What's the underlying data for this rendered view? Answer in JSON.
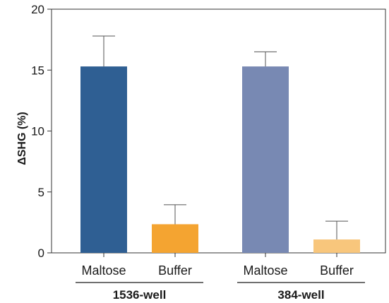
{
  "chart_data": {
    "type": "bar",
    "ylabel": "ΔSHG (%)",
    "ylim": [
      0,
      20
    ],
    "yticks": [
      "0",
      "5",
      "10",
      "15",
      "20"
    ],
    "bars": [
      {
        "category": "Maltose",
        "group": "1536-well",
        "value": 15.3,
        "error": 2.5,
        "color": "#2f5f93"
      },
      {
        "category": "Buffer",
        "group": "1536-well",
        "value": 2.35,
        "error": 1.6,
        "color": "#f4a431"
      },
      {
        "category": "Maltose",
        "group": "384-well",
        "value": 15.3,
        "error": 1.2,
        "color": "#7889b3"
      },
      {
        "category": "Buffer",
        "group": "384-well",
        "value": 1.1,
        "error": 1.5,
        "color": "#f8c67c"
      }
    ],
    "groups": [
      "1536-well",
      "384-well"
    ],
    "grid": false,
    "legend": "none"
  }
}
